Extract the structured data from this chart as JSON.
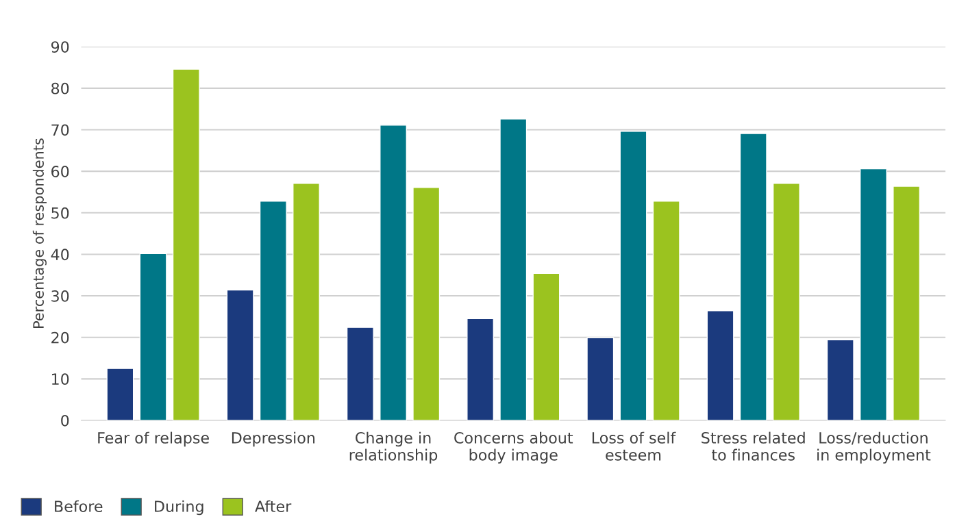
{
  "chart_data": {
    "type": "bar",
    "ylabel": "Percentage of respondents",
    "categories": [
      "Fear of relapse",
      "Depression",
      "Change in\nrelationship",
      "Concerns about\nbody image",
      "Loss of self\nesteem",
      "Stress related\nto finances",
      "Loss/reduction\nin employment"
    ],
    "series": [
      {
        "name": "Before",
        "color": "#1b3a7e",
        "values": [
          12.5,
          31.4,
          22.4,
          24.5,
          19.9,
          26.4,
          19.4
        ]
      },
      {
        "name": "During",
        "color": "#007787",
        "values": [
          40.2,
          52.8,
          71.1,
          72.6,
          69.6,
          69.1,
          60.6
        ]
      },
      {
        "name": "After",
        "color": "#9bc31f",
        "values": [
          84.6,
          57.1,
          56.1,
          35.4,
          52.8,
          57.1,
          56.4
        ]
      }
    ],
    "ylim": [
      0,
      90
    ],
    "yticks": [
      0,
      10,
      20,
      30,
      40,
      50,
      60,
      70,
      80,
      90
    ],
    "grid": "y",
    "legend": "bottom left"
  }
}
